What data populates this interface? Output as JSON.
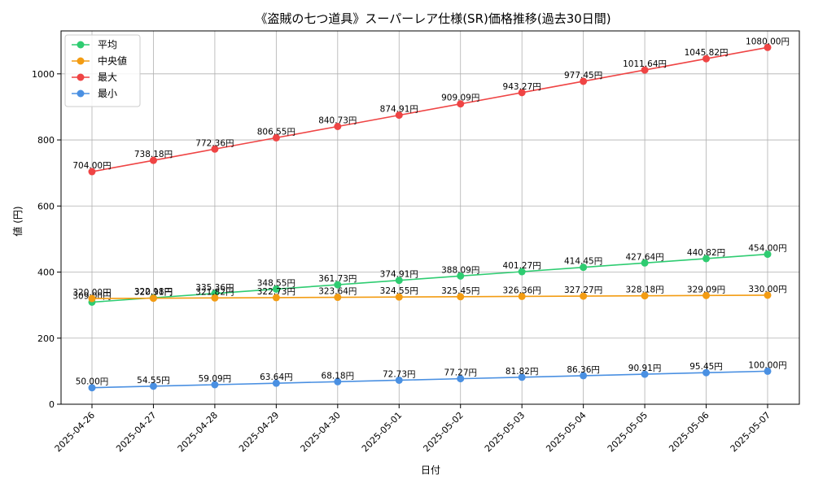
{
  "chart_data": {
    "type": "line",
    "title": "《盗賊の七つ道具》スーパーレア仕様(SR)価格推移(過去30日間)",
    "xlabel": "日付",
    "ylabel": "値 (円)",
    "ylim": [
      0,
      1130
    ],
    "yticks": [
      0,
      200,
      400,
      600,
      800,
      1000
    ],
    "grid": true,
    "legend_position": "top-left",
    "categories": [
      "2025-04-26",
      "2025-04-27",
      "2025-04-28",
      "2025-04-29",
      "2025-04-30",
      "2025-05-01",
      "2025-05-02",
      "2025-05-03",
      "2025-05-04",
      "2025-05-05",
      "2025-05-06",
      "2025-05-07"
    ],
    "series": [
      {
        "name": "平均",
        "color": "#2ecc71",
        "values": [
          309.0,
          322.18,
          335.36,
          348.55,
          361.73,
          374.91,
          388.09,
          401.27,
          414.45,
          427.64,
          440.82,
          454.0
        ],
        "labels": [
          "309.00円",
          "322.18円",
          "335.36円",
          "348.55円",
          "361.73円",
          "374.91円",
          "388.09円",
          "401.27円",
          "414.45円",
          "427.64円",
          "440.82円",
          "454.00円"
        ]
      },
      {
        "name": "中央値",
        "color": "#f39c12",
        "values": [
          320.0,
          320.91,
          321.82,
          322.73,
          323.64,
          324.55,
          325.45,
          326.36,
          327.27,
          328.18,
          329.09,
          330.0
        ],
        "labels": [
          "320.00円",
          "320.91円",
          "321.82円",
          "322.73円",
          "323.64円",
          "324.55円",
          "325.45円",
          "326.36円",
          "327.27円",
          "328.18円",
          "329.09円",
          "330.00円"
        ]
      },
      {
        "name": "最大",
        "color": "#ef4444",
        "values": [
          704.0,
          738.18,
          772.36,
          806.55,
          840.73,
          874.91,
          909.09,
          943.27,
          977.45,
          1011.64,
          1045.82,
          1080.0
        ],
        "labels": [
          "704.00円",
          "738.18円",
          "772.36円",
          "806.55円",
          "840.73円",
          "874.91円",
          "909.09円",
          "943.27円",
          "977.45円",
          "1011.64円",
          "1045.82円",
          "1080.00円"
        ]
      },
      {
        "name": "最小",
        "color": "#4a90e2",
        "values": [
          50.0,
          54.55,
          59.09,
          63.64,
          68.18,
          72.73,
          77.27,
          81.82,
          86.36,
          90.91,
          95.45,
          100.0
        ],
        "labels": [
          "50.00円",
          "54.55円",
          "59.09円",
          "63.64円",
          "68.18円",
          "72.73円",
          "77.27円",
          "81.82円",
          "86.36円",
          "90.91円",
          "95.45円",
          "100.00円"
        ]
      }
    ]
  }
}
